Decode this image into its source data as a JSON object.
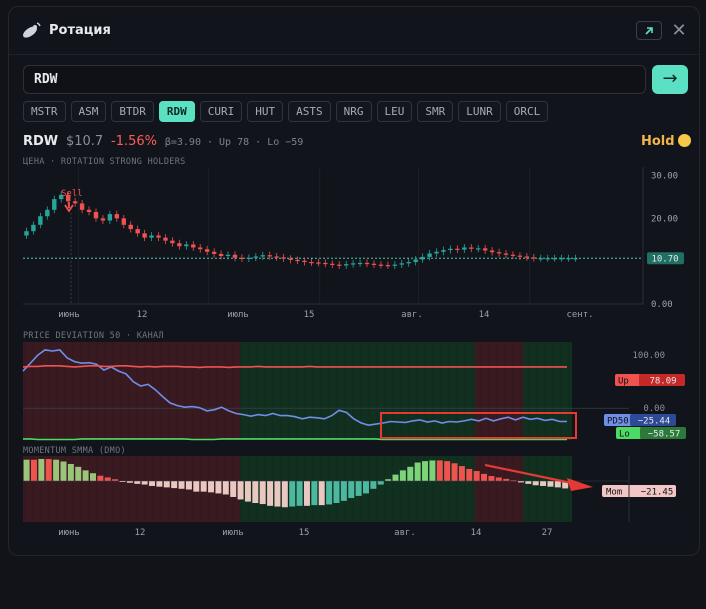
{
  "header": {
    "title": "Ротация",
    "app_icon": "satellite-icon",
    "external_icon": "arrow-up-right-icon",
    "close_glyph": "✕"
  },
  "search": {
    "value": "RDW",
    "submit_glyph": "→"
  },
  "tickers": [
    {
      "label": "MSTR",
      "active": false
    },
    {
      "label": "ASM",
      "active": false
    },
    {
      "label": "BTDR",
      "active": false
    },
    {
      "label": "RDW",
      "active": true
    },
    {
      "label": "CURI",
      "active": false
    },
    {
      "label": "HUT",
      "active": false
    },
    {
      "label": "ASTS",
      "active": false
    },
    {
      "label": "NRG",
      "active": false
    },
    {
      "label": "LEU",
      "active": false
    },
    {
      "label": "SMR",
      "active": false
    },
    {
      "label": "LUNR",
      "active": false
    },
    {
      "label": "ORCL",
      "active": false
    }
  ],
  "quote": {
    "symbol": "RDW",
    "price": "$10.7",
    "change": "-1.56%",
    "meta": "β=3.90 · Up 78 · Lo −59"
  },
  "signal": {
    "label": "Hold",
    "color": "#f7c948"
  },
  "colors": {
    "up": "#26a69a",
    "down": "#ef5350",
    "accent": "#5be0c4",
    "pd_line": "#6f8ee8",
    "upper_band": "#ef5350",
    "lower_band": "#4cd964"
  },
  "chart_data": [
    {
      "type": "candlestick",
      "subtitle": "ЦЕНА · ROTATION STRONG HOLDERS",
      "x_ticks": [
        "июнь",
        "12",
        "июль",
        "15",
        "авг.",
        "14",
        "сент."
      ],
      "y_ticks": [
        "30.00",
        "20.00",
        "10.00",
        "0.00"
      ],
      "ylim": [
        0,
        32
      ],
      "last_price": "10.70",
      "annotation": "Sell",
      "close": [
        17.0,
        18.5,
        20.5,
        22.0,
        24.5,
        25.5,
        24.0,
        23.5,
        22.0,
        21.5,
        20.0,
        19.5,
        21.0,
        20.0,
        18.5,
        17.5,
        16.5,
        15.5,
        16.0,
        15.5,
        14.8,
        14.2,
        13.5,
        13.9,
        13.2,
        12.8,
        12.2,
        11.7,
        11.2,
        11.5,
        10.8,
        10.6,
        10.8,
        11.1,
        11.4,
        11.1,
        10.9,
        10.6,
        10.3,
        10.1,
        9.8,
        9.7,
        9.6,
        9.4,
        9.2,
        9.0,
        9.3,
        9.5,
        9.6,
        9.4,
        9.2,
        9.1,
        9.0,
        9.2,
        9.5,
        9.8,
        10.4,
        11.0,
        11.8,
        12.2,
        12.6,
        12.9,
        12.7,
        13.2,
        12.9,
        13.0,
        12.5,
        12.1,
        11.8,
        11.5,
        11.3,
        11.1,
        10.9,
        10.7,
        10.7,
        10.7,
        10.7,
        10.7,
        10.7,
        10.7
      ]
    },
    {
      "type": "line",
      "subtitle": "PRICE DEVIATION 50 · КАНАЛ",
      "y_ticks": [
        "100.00",
        "0.00",
        "-50.00"
      ],
      "ylim": [
        -60,
        125
      ],
      "series": [
        {
          "name": "PD50",
          "value": "−25.44",
          "values": [
            70,
            85,
            100,
            110,
            108,
            110,
            95,
            88,
            85,
            86,
            83,
            72,
            78,
            70,
            65,
            50,
            42,
            45,
            35,
            22,
            10,
            5,
            2,
            3,
            1,
            -5,
            -3,
            2,
            -5,
            -10,
            -12,
            -15,
            -12,
            -14,
            -10,
            -14,
            -14,
            -16,
            -20,
            -17,
            -18,
            -20,
            -14,
            -4,
            -8,
            -20,
            -28,
            -32,
            -30,
            -28,
            -25,
            -26,
            -27,
            -24,
            -22,
            -26,
            -24,
            -28,
            -25,
            -26,
            -24,
            -21,
            -24,
            -19,
            -24,
            -20,
            -17,
            -22,
            -17,
            -21,
            -19,
            -23,
            -21,
            -25,
            -25
          ]
        },
        {
          "name": "Up",
          "value": "78.09",
          "values": [
            78,
            79,
            79,
            80,
            80,
            80,
            79,
            78,
            79,
            80,
            80,
            79,
            79,
            80,
            80,
            79,
            78,
            79,
            78,
            79,
            79,
            79,
            78,
            78,
            77,
            78,
            78,
            78,
            77,
            78,
            78,
            78,
            79,
            78,
            78,
            78,
            78,
            78,
            78,
            79,
            78,
            78,
            78,
            78,
            78,
            78,
            78,
            78,
            78,
            78,
            78,
            78,
            78,
            78,
            78,
            78,
            78,
            78,
            78,
            78,
            78,
            78,
            78,
            78,
            78,
            78,
            78,
            78,
            78,
            78,
            78,
            78,
            78,
            78,
            78
          ]
        },
        {
          "name": "Lo",
          "value": "−58.57",
          "values": [
            -58,
            -58,
            -59,
            -59,
            -59,
            -59,
            -59,
            -59,
            -58,
            -58,
            -58,
            -58,
            -58,
            -58,
            -58,
            -58,
            -58,
            -58,
            -58,
            -58,
            -58,
            -58,
            -58,
            -59,
            -59,
            -59,
            -59,
            -58,
            -58,
            -58,
            -58,
            -58,
            -58,
            -58,
            -58,
            -58,
            -58,
            -58,
            -58,
            -58,
            -58,
            -58,
            -58,
            -58,
            -58,
            -58,
            -58,
            -58,
            -58,
            -59,
            -59,
            -59,
            -59,
            -59,
            -59,
            -59,
            -59,
            -59,
            -59,
            -59,
            -59,
            -59,
            -59,
            -59,
            -59,
            -59,
            -59,
            -59,
            -59,
            -59,
            -59,
            -59,
            -59,
            -59,
            -59
          ]
        }
      ]
    },
    {
      "type": "bar",
      "subtitle": "MOMENTUM SMMA (DMO)",
      "x_ticks": [
        "июнь",
        "12",
        "июль",
        "15",
        "авг.",
        "14",
        "27"
      ],
      "series": [
        {
          "name": "Mom",
          "value": "−21.45",
          "values": [
            60,
            60,
            62,
            62,
            60,
            55,
            48,
            40,
            30,
            22,
            15,
            10,
            5,
            -2,
            -5,
            -8,
            -10,
            -14,
            -16,
            -18,
            -20,
            -22,
            -24,
            -30,
            -30,
            -32,
            -35,
            -38,
            -45,
            -52,
            -58,
            -62,
            -65,
            -70,
            -72,
            -74,
            -72,
            -70,
            -70,
            -68,
            -68,
            -66,
            -62,
            -56,
            -48,
            -42,
            -35,
            -22,
            -10,
            5,
            18,
            30,
            40,
            52,
            56,
            58,
            58,
            56,
            50,
            42,
            34,
            28,
            20,
            14,
            10,
            6,
            2,
            -4,
            -8,
            -12,
            -14,
            -16,
            -18,
            -21
          ]
        }
      ]
    }
  ]
}
